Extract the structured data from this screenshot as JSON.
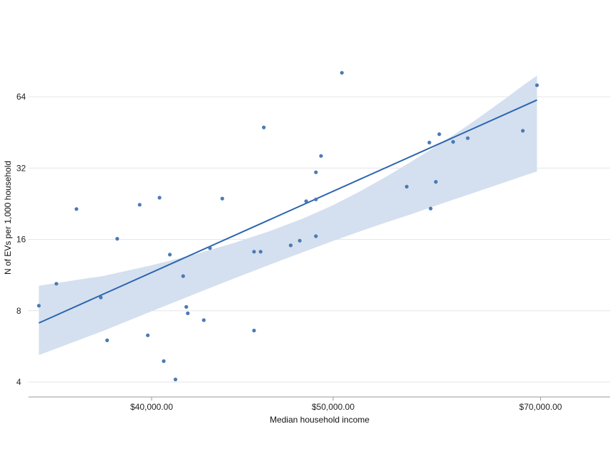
{
  "chart_data": {
    "type": "scatter",
    "xlabel": "Median household income",
    "ylabel": "N of EVs per 1,000 household",
    "y_scale": "log2",
    "ylim": [
      3.6,
      100
    ],
    "y_ticks": [
      4,
      8,
      16,
      32,
      64
    ],
    "y_tick_labels": [
      "4",
      "8",
      "16",
      "32",
      "64"
    ],
    "x_scale": "reciprocal",
    "xlim": [
      35400,
      70000
    ],
    "x_ticks": [
      40000,
      50000,
      70000
    ],
    "x_tick_labels": [
      "$40,000.00",
      "$50,000.00",
      "$70,000.00"
    ],
    "grid": "horizontal",
    "colors": {
      "points": "#4a7ab5",
      "fit_line": "#2b65b0",
      "band": "#d4e0ef",
      "grid": "#e6e6e6",
      "axis": "#999999"
    },
    "points": [
      {
        "x": 35580,
        "y": 8.4
      },
      {
        "x": 36200,
        "y": 10.4
      },
      {
        "x": 36940,
        "y": 21.5
      },
      {
        "x": 37880,
        "y": 9.1
      },
      {
        "x": 38130,
        "y": 6.0
      },
      {
        "x": 38540,
        "y": 16.1
      },
      {
        "x": 39480,
        "y": 22.4
      },
      {
        "x": 39830,
        "y": 6.3
      },
      {
        "x": 40350,
        "y": 24.0
      },
      {
        "x": 40540,
        "y": 4.9
      },
      {
        "x": 40820,
        "y": 13.8
      },
      {
        "x": 41080,
        "y": 4.1
      },
      {
        "x": 41440,
        "y": 11.2
      },
      {
        "x": 41590,
        "y": 8.3
      },
      {
        "x": 41660,
        "y": 7.8
      },
      {
        "x": 42440,
        "y": 7.3
      },
      {
        "x": 42750,
        "y": 14.7
      },
      {
        "x": 43380,
        "y": 23.8
      },
      {
        "x": 45090,
        "y": 6.6
      },
      {
        "x": 45090,
        "y": 14.2
      },
      {
        "x": 45460,
        "y": 14.2
      },
      {
        "x": 45640,
        "y": 47.5
      },
      {
        "x": 47240,
        "y": 15.1
      },
      {
        "x": 47800,
        "y": 15.8
      },
      {
        "x": 48210,
        "y": 23.2
      },
      {
        "x": 48840,
        "y": 16.5
      },
      {
        "x": 48840,
        "y": 23.6
      },
      {
        "x": 48840,
        "y": 30.7
      },
      {
        "x": 49180,
        "y": 36.0
      },
      {
        "x": 50610,
        "y": 80.8
      },
      {
        "x": 55640,
        "y": 26.7
      },
      {
        "x": 57640,
        "y": 41.0
      },
      {
        "x": 57760,
        "y": 21.6
      },
      {
        "x": 58240,
        "y": 28.0
      },
      {
        "x": 58560,
        "y": 44.5
      },
      {
        "x": 59900,
        "y": 41.3
      },
      {
        "x": 61380,
        "y": 42.8
      },
      {
        "x": 67680,
        "y": 46.0
      },
      {
        "x": 69520,
        "y": 71.6
      }
    ],
    "fit": {
      "x": [
        35580,
        69520
      ],
      "y": [
        7.1,
        62.0
      ]
    },
    "confidence_band": {
      "x": [
        35580,
        38000,
        40000,
        42000,
        44000,
        46000,
        48000,
        50000,
        52000,
        54000,
        56000,
        58000,
        60000,
        62000,
        64000,
        66000,
        68000,
        69520
      ],
      "lower": [
        5.2,
        6.59,
        7.96,
        9.41,
        10.95,
        12.53,
        14.13,
        15.77,
        17.36,
        18.92,
        20.43,
        22.02,
        23.59,
        25.15,
        26.71,
        28.28,
        29.84,
        30.94
      ],
      "upper": [
        10.2,
        11.23,
        12.44,
        13.84,
        15.46,
        17.35,
        19.58,
        22.32,
        25.65,
        29.54,
        34.0,
        38.9,
        44.3,
        50.4,
        57.2,
        64.6,
        72.6,
        78.6
      ]
    }
  }
}
